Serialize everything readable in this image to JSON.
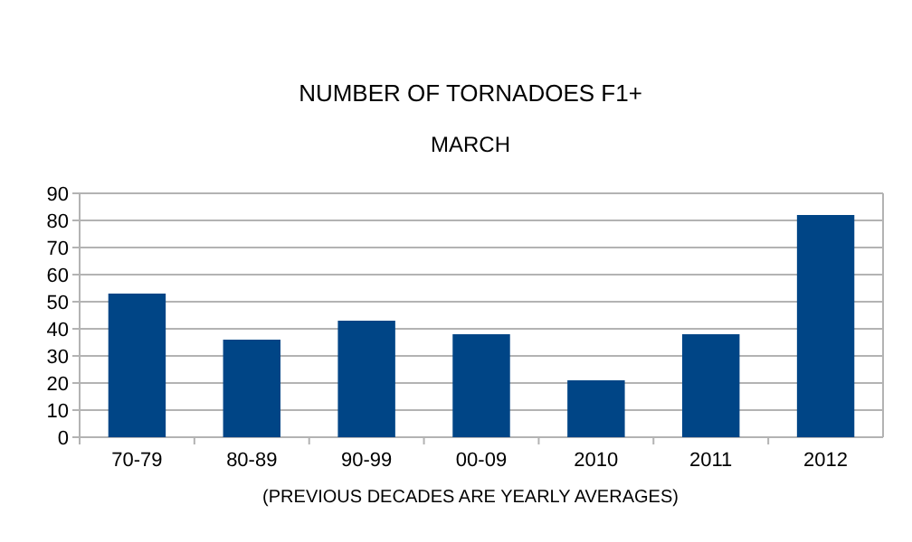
{
  "chart_data": {
    "type": "bar",
    "title": "NUMBER OF TORNADOES F1+",
    "subtitle": "MARCH",
    "categories": [
      "70-79",
      "80-89",
      "90-99",
      "00-09",
      "2010",
      "2011",
      "2012"
    ],
    "values": [
      53,
      36,
      43,
      38,
      21,
      38,
      82
    ],
    "color": "#004586",
    "ylim": [
      0,
      90
    ],
    "yticks": [
      0,
      10,
      20,
      30,
      40,
      50,
      60,
      70,
      80,
      90
    ],
    "grid": "y",
    "annotations": [
      "(PREVIOUS DECADES ARE YEARLY AVERAGES)"
    ]
  }
}
